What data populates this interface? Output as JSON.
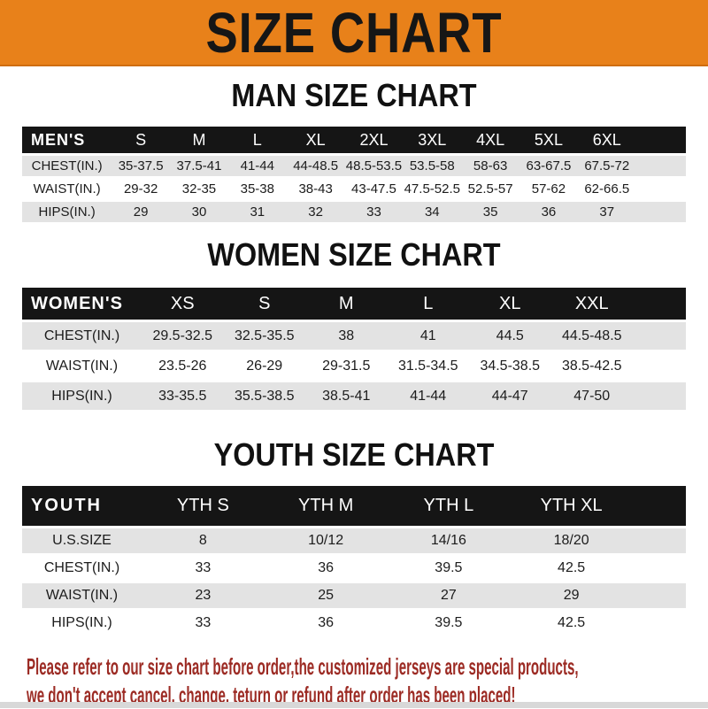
{
  "banner": {
    "title": "SIZE CHART"
  },
  "sections": [
    {
      "key": "men",
      "heading": "MAN SIZE CHART",
      "header_label": "MEN'S",
      "columns": [
        "S",
        "M",
        "L",
        "XL",
        "2XL",
        "3XL",
        "4XL",
        "5XL",
        "6XL"
      ],
      "rows": [
        {
          "label": "CHEST(IN.)",
          "values": [
            "35-37.5",
            "37.5-41",
            "41-44",
            "44-48.5",
            "48.5-53.5",
            "53.5-58",
            "58-63",
            "63-67.5",
            "67.5-72"
          ]
        },
        {
          "label": "WAIST(IN.)",
          "values": [
            "29-32",
            "32-35",
            "35-38",
            "38-43",
            "43-47.5",
            "47.5-52.5",
            "52.5-57",
            "57-62",
            "62-66.5"
          ]
        },
        {
          "label": "HIPS(IN.)",
          "values": [
            "29",
            "30",
            "31",
            "32",
            "33",
            "34",
            "35",
            "36",
            "37"
          ]
        }
      ]
    },
    {
      "key": "women",
      "heading": "WOMEN SIZE CHART",
      "header_label": "WOMEN'S",
      "columns": [
        "XS",
        "S",
        "M",
        "L",
        "XL",
        "XXL"
      ],
      "rows": [
        {
          "label": "CHEST(IN.)",
          "values": [
            "29.5-32.5",
            "32.5-35.5",
            "38",
            "41",
            "44.5",
            "44.5-48.5"
          ]
        },
        {
          "label": "WAIST(IN.)",
          "values": [
            "23.5-26",
            "26-29",
            "29-31.5",
            "31.5-34.5",
            "34.5-38.5",
            "38.5-42.5"
          ]
        },
        {
          "label": "HIPS(IN.)",
          "values": [
            "33-35.5",
            "35.5-38.5",
            "38.5-41",
            "41-44",
            "44-47",
            "47-50"
          ]
        }
      ]
    },
    {
      "key": "youth",
      "heading": "YOUTH SIZE CHART",
      "header_label": "YOUTH",
      "columns": [
        "YTH S",
        "YTH M",
        "YTH L",
        "YTH XL"
      ],
      "rows": [
        {
          "label": "U.S.SIZE",
          "values": [
            "8",
            "10/12",
            "14/16",
            "18/20"
          ]
        },
        {
          "label": "CHEST(IN.)",
          "values": [
            "33",
            "36",
            "39.5",
            "42.5"
          ]
        },
        {
          "label": "WAIST(IN.)",
          "values": [
            "23",
            "25",
            "27",
            "29"
          ]
        },
        {
          "label": "HIPS(IN.)",
          "values": [
            "33",
            "36",
            "39.5",
            "42.5"
          ]
        }
      ]
    }
  ],
  "footer": {
    "line1": "Please refer to our size chart before order,the customized jerseys are special products,",
    "line2": "we don't accept cancel, change, teturn or refund after order has been placed!"
  },
  "colors": {
    "banner_bg": "#e8811a",
    "banner_text": "#161616",
    "bar_bg": "#151515",
    "bar_text": "#ffffff",
    "row_alt_bg": "#e3e3e3",
    "row_bg": "#ffffff",
    "body_text": "#1c1c1c",
    "heading_text": "#111111",
    "footer_text": "#9c2b24",
    "bottom_strip": "#d8d8d8"
  }
}
